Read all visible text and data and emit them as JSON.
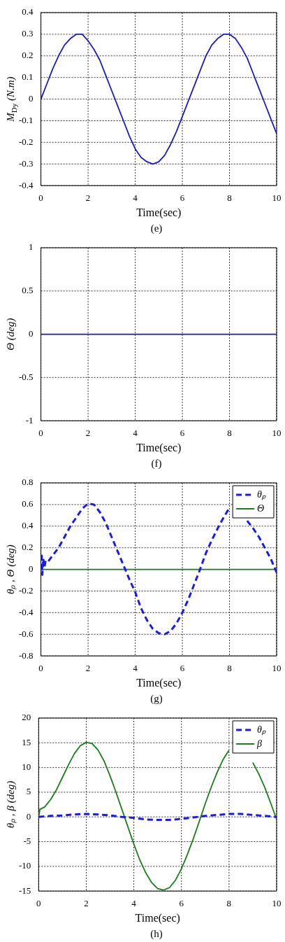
{
  "chart_data": [
    {
      "type": "line",
      "xlabel": "Time(sec)",
      "ylabel": "M$_{Dy}$ (N.m)",
      "annotations": [
        "(e)"
      ],
      "xlim": [
        0,
        10
      ],
      "xticks": [
        0,
        2,
        4,
        6,
        8,
        10
      ],
      "ylim": [
        -0.4,
        0.4
      ],
      "yticks": [
        -0.4,
        -0.3,
        -0.2,
        -0.1,
        0,
        0.1,
        0.2,
        0.3,
        0.4
      ],
      "grid": true,
      "x": [
        0,
        0.25,
        0.5,
        0.75,
        1,
        1.25,
        1.5,
        1.75,
        2,
        2.25,
        2.5,
        2.75,
        3,
        3.25,
        3.5,
        3.75,
        4,
        4.25,
        4.5,
        4.75,
        5,
        5.25,
        5.5,
        5.75,
        6,
        6.25,
        6.5,
        6.75,
        7,
        7.25,
        7.5,
        7.75,
        8,
        8.25,
        8.5,
        8.75,
        9,
        9.25,
        9.5,
        9.75,
        10
      ],
      "series": [
        {
          "color": "#1a1acc",
          "values": [
            0,
            0.07,
            0.14,
            0.2,
            0.25,
            0.28,
            0.3,
            0.3,
            0.27,
            0.23,
            0.18,
            0.11,
            0.04,
            -0.03,
            -0.1,
            -0.17,
            -0.23,
            -0.27,
            -0.29,
            -0.3,
            -0.29,
            -0.26,
            -0.21,
            -0.15,
            -0.08,
            -0.01,
            0.06,
            0.13,
            0.2,
            0.25,
            0.28,
            0.3,
            0.3,
            0.28,
            0.24,
            0.19,
            0.12,
            0.05,
            -0.02,
            -0.09,
            -0.16
          ]
        }
      ]
    },
    {
      "type": "line",
      "xlabel": "Time(sec)",
      "ylabel": "Θ (deg)",
      "annotations": [
        "(f)"
      ],
      "xlim": [
        0,
        10
      ],
      "xticks": [
        0,
        2,
        4,
        6,
        8,
        10
      ],
      "ylim": [
        -1,
        1
      ],
      "yticks": [
        -1,
        -0.5,
        0,
        0.5,
        1
      ],
      "grid": true,
      "x": [
        0,
        10
      ],
      "series": [
        {
          "color": "#1a1acc",
          "values": [
            0,
            0
          ]
        }
      ]
    },
    {
      "type": "line",
      "xlabel": "Time(sec)",
      "ylabel": "θₚ , Θ (deg)",
      "annotations": [
        "(g)"
      ],
      "xlim": [
        0,
        10
      ],
      "xticks": [
        0,
        2,
        4,
        6,
        8,
        10
      ],
      "ylim": [
        -0.8,
        0.8
      ],
      "yticks": [
        -0.8,
        -0.6,
        -0.4,
        -0.2,
        0,
        0.2,
        0.4,
        0.6,
        0.8
      ],
      "grid": true,
      "legend": "top right",
      "x": [
        0,
        0.03,
        0.06,
        0.1,
        0.15,
        0.2,
        0.3,
        0.5,
        0.75,
        1,
        1.25,
        1.5,
        1.75,
        2,
        2.25,
        2.5,
        2.75,
        3,
        3.25,
        3.5,
        3.75,
        4,
        4.25,
        4.5,
        4.75,
        5,
        5.25,
        5.5,
        5.75,
        6,
        6.25,
        6.5,
        6.75,
        7,
        7.25,
        7.5,
        7.75,
        8,
        8.25,
        8.5,
        8.75,
        9,
        9.25,
        9.5,
        9.75,
        10
      ],
      "series": [
        {
          "name": "θₚ",
          "color": "#1a1aee",
          "line_style": "dashed",
          "values": [
            0,
            0.15,
            -0.05,
            0.1,
            0.02,
            0.08,
            0.07,
            0.13,
            0.2,
            0.3,
            0.4,
            0.48,
            0.56,
            0.61,
            0.6,
            0.53,
            0.43,
            0.3,
            0.17,
            0.04,
            -0.09,
            -0.21,
            -0.36,
            -0.47,
            -0.55,
            -0.59,
            -0.6,
            -0.57,
            -0.5,
            -0.4,
            -0.28,
            -0.14,
            0,
            0.15,
            0.27,
            0.38,
            0.48,
            0.57,
            null,
            null,
            0.45,
            0.38,
            0.3,
            0.2,
            0.1,
            -0.03
          ]
        },
        {
          "name": "Θ",
          "color": "#1a7f1a",
          "x": [
            0,
            10
          ],
          "values": [
            0,
            0
          ]
        }
      ]
    },
    {
      "type": "line",
      "xlabel": "Time(sec)",
      "ylabel": "θₚ , β (deg)",
      "annotations": [
        "(h)"
      ],
      "xlim": [
        0,
        10
      ],
      "xticks": [
        0,
        2,
        4,
        6,
        8,
        10
      ],
      "ylim": [
        -15,
        20
      ],
      "yticks": [
        -15,
        -10,
        -5,
        0,
        5,
        10,
        15,
        20
      ],
      "grid": true,
      "legend": "top right",
      "x": [
        0,
        0.5,
        1,
        1.5,
        2,
        2.5,
        3,
        3.5,
        4,
        4.5,
        5,
        5.5,
        6,
        6.5,
        7,
        7.5,
        8,
        8.5,
        9,
        9.5,
        10
      ],
      "series": [
        {
          "name": "θₚ",
          "color": "#1a1aee",
          "line_style": "dashed",
          "values": [
            0,
            0.2,
            0.3,
            0.5,
            0.6,
            0.5,
            0.3,
            0,
            -0.2,
            -0.5,
            -0.6,
            -0.6,
            -0.4,
            -0.1,
            0.2,
            0.4,
            0.6,
            0.6,
            0.4,
            0.2,
            0
          ]
        },
        {
          "name": "β",
          "color": "#1a7f1a",
          "x": [
            0,
            0.05,
            0.25,
            0.5,
            0.75,
            1,
            1.25,
            1.5,
            1.75,
            2,
            2.25,
            2.5,
            2.75,
            3,
            3.25,
            3.5,
            3.75,
            4,
            4.25,
            4.5,
            4.75,
            5,
            5.25,
            5.5,
            5.75,
            6,
            6.25,
            6.5,
            6.75,
            7,
            7.25,
            7.5,
            7.75,
            8,
            8.25,
            8.5,
            8.75,
            9,
            9.25,
            9.5,
            9.75,
            10
          ],
          "values": [
            0,
            1.5,
            2,
            3.5,
            5.5,
            8,
            10.5,
            12.8,
            14.4,
            15.1,
            14.8,
            13.5,
            11.3,
            8.3,
            5,
            1.5,
            -2,
            -5.5,
            -8.7,
            -11.3,
            -13.3,
            -14.5,
            -14.8,
            -14.3,
            -12.8,
            -10.5,
            -7.6,
            -4.4,
            -0.9,
            2.7,
            6,
            9,
            11.6,
            13.5,
            null,
            null,
            null,
            11,
            8.7,
            6,
            2.8,
            -0.5
          ]
        }
      ]
    }
  ]
}
